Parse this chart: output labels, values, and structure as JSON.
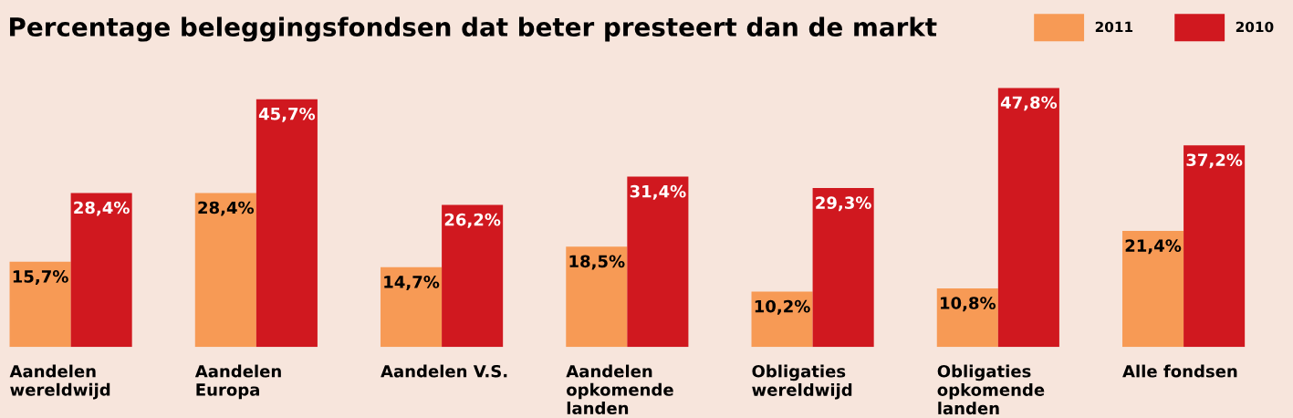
{
  "chart_data": {
    "type": "bar",
    "title": "Percentage beleggingsfondsen dat beter presteert dan de markt",
    "categories": [
      "Aandelen\nwereldwijd",
      "Aandelen\nEuropa",
      "Aandelen V.S.",
      "Aandelen\nopkomende\nlanden",
      "Obligaties\nwereldwijd",
      "Obligaties\nopkomende\nlanden",
      "Alle fondsen"
    ],
    "series": [
      {
        "name": "2011",
        "color": "#f79a55",
        "values": [
          15.7,
          28.4,
          14.7,
          18.5,
          10.2,
          10.8,
          21.4
        ],
        "value_labels": [
          "15,7%",
          "28,4%",
          "14,7%",
          "18,5%",
          "10,2%",
          "10,8%",
          "21,4%"
        ]
      },
      {
        "name": "2010",
        "color": "#d0181f",
        "values": [
          28.4,
          45.7,
          26.2,
          31.4,
          29.3,
          47.8,
          37.2
        ],
        "value_labels": [
          "28,4%",
          "45,7%",
          "26,2%",
          "31,4%",
          "29,3%",
          "47,8%",
          "37,2%"
        ]
      }
    ],
    "tick_labels": "x",
    "grid": false,
    "legend": "top right"
  }
}
